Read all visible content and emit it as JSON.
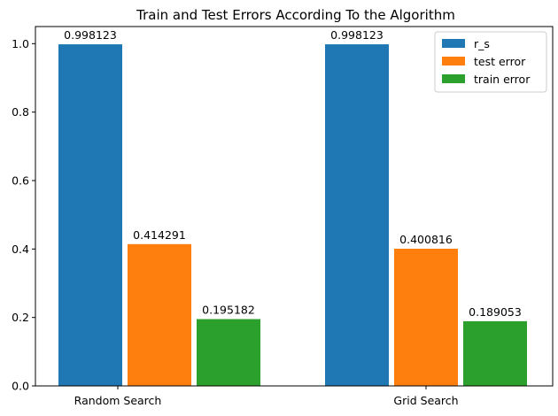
{
  "chart_data": {
    "type": "bar",
    "title": "Train and Test Errors According To the Algorithm",
    "xlabel": "",
    "ylabel": "",
    "categories": [
      "Random Search",
      "Grid Search"
    ],
    "series": [
      {
        "name": "r_s",
        "color": "#1f77b4",
        "values": [
          0.998123,
          0.998123
        ],
        "labels": [
          "0.998123",
          "0.998123"
        ]
      },
      {
        "name": "test error",
        "color": "#ff7f0e",
        "values": [
          0.414291,
          0.400816
        ],
        "labels": [
          "0.414291",
          "0.400816"
        ]
      },
      {
        "name": "train error",
        "color": "#2ca02c",
        "values": [
          0.195182,
          0.189053
        ],
        "labels": [
          "0.195182",
          "0.189053"
        ]
      }
    ],
    "ylim": [
      0,
      1.05
    ],
    "yticks": [
      0.0,
      0.2,
      0.4,
      0.6,
      0.8,
      1.0
    ],
    "ytick_labels": [
      "0.0",
      "0.2",
      "0.4",
      "0.6",
      "0.8",
      "1.0"
    ],
    "grid": false,
    "legend_position": "top-right"
  }
}
